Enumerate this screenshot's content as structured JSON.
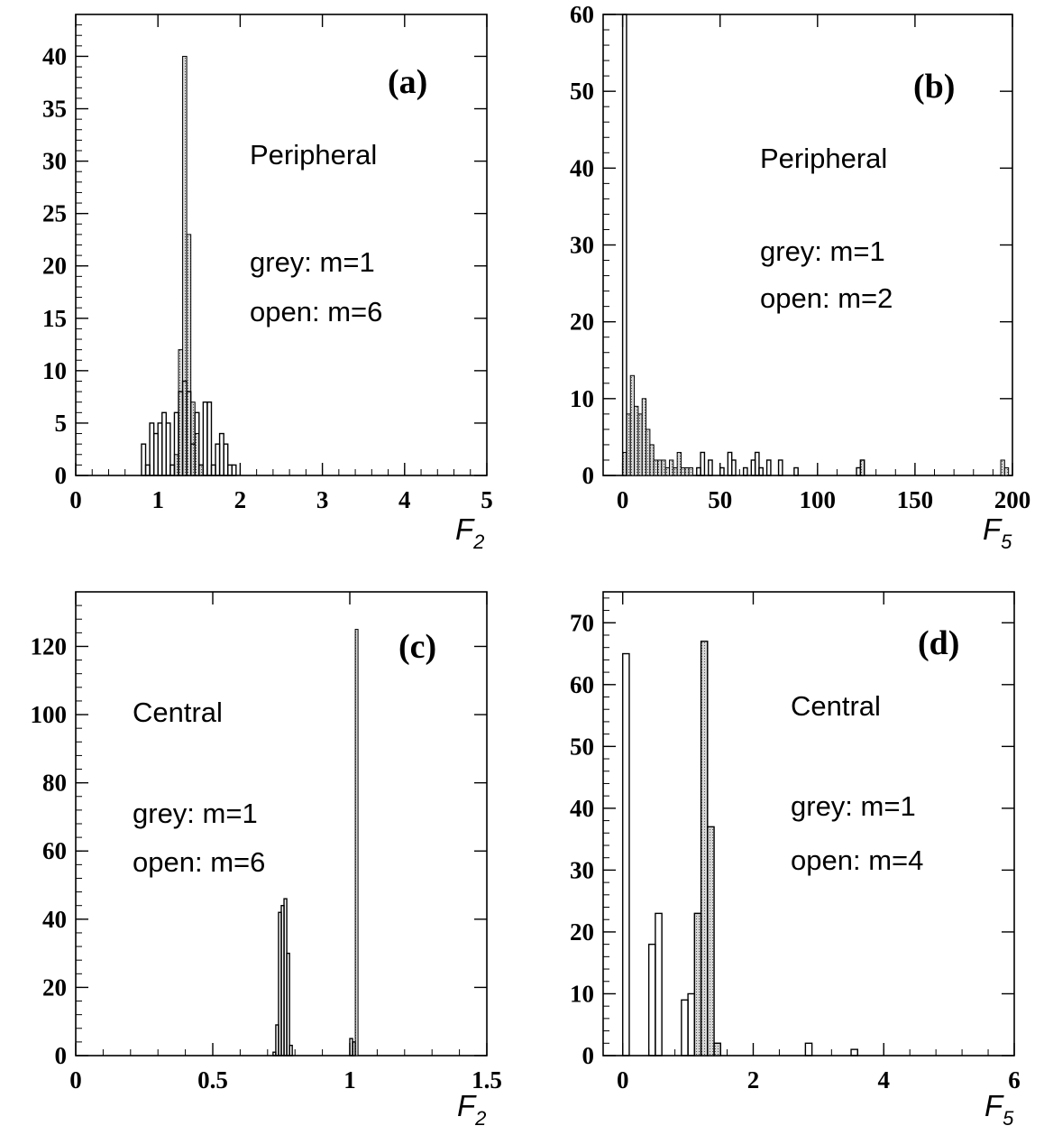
{
  "chart_data": [
    {
      "panel": "(a)",
      "type": "bar",
      "annotations": [
        "Peripheral",
        "grey: m=1",
        "open: m=6"
      ],
      "xlabel": "F",
      "xlabel_sub": "2",
      "xlim": [
        0,
        5
      ],
      "ylim": [
        0,
        44
      ],
      "xticks": [
        0,
        1,
        2,
        3,
        4,
        5
      ],
      "yticks": [
        0,
        5,
        10,
        15,
        20,
        25,
        30,
        35,
        40
      ],
      "bin_width": 0.05,
      "series": [
        {
          "name": "grey: m=1",
          "style": "filled",
          "x": [
            1.2,
            1.25,
            1.3,
            1.35,
            1.4,
            1.45,
            1.5
          ],
          "values": [
            2,
            12,
            40,
            23,
            7,
            4,
            1
          ]
        },
        {
          "name": "open: m=6",
          "style": "open",
          "x": [
            0.8,
            0.85,
            0.9,
            0.95,
            1.0,
            1.05,
            1.1,
            1.15,
            1.2,
            1.25,
            1.3,
            1.35,
            1.4,
            1.45,
            1.5,
            1.55,
            1.6,
            1.65,
            1.7,
            1.75,
            1.8,
            1.85,
            1.9
          ],
          "values": [
            3,
            1,
            5,
            4,
            5,
            6,
            5,
            1,
            6,
            8,
            9,
            8,
            3,
            6,
            1,
            7,
            7,
            1,
            3,
            4,
            3,
            1,
            1
          ]
        }
      ]
    },
    {
      "panel": "(b)",
      "type": "bar",
      "annotations": [
        "Peripheral",
        "grey: m=1",
        "open: m=2"
      ],
      "xlabel": "F",
      "xlabel_sub": "5",
      "xlim": [
        -10,
        200
      ],
      "ylim": [
        0,
        60
      ],
      "xticks": [
        0,
        50,
        100,
        150,
        200
      ],
      "yticks": [
        0,
        10,
        20,
        30,
        40,
        50,
        60
      ],
      "bin_width": 2,
      "series": [
        {
          "name": "grey: m=1",
          "style": "filled",
          "x": [
            0,
            2,
            4,
            6,
            8,
            10,
            12,
            14,
            16,
            18,
            20,
            22,
            24,
            26,
            28,
            30,
            32,
            34
          ],
          "values": [
            3,
            8,
            13,
            9,
            8,
            10,
            6,
            4,
            2,
            2,
            2,
            1,
            2,
            1,
            3,
            1,
            1,
            1
          ],
          "labelled": [
            {
              "x": 122,
              "v": 2
            },
            {
              "x": 194,
              "v": 2
            },
            {
              "x": 196,
              "v": 1
            }
          ]
        },
        {
          "name": "open: m=2",
          "style": "open",
          "x": [
            0,
            38,
            40,
            44,
            50,
            54,
            56,
            62,
            66,
            68,
            70,
            74,
            80,
            88,
            120,
            122
          ],
          "values": [
            60,
            1,
            3,
            2,
            1,
            3,
            2,
            1,
            2,
            3,
            1,
            2,
            2,
            1,
            1,
            2
          ]
        }
      ]
    },
    {
      "panel": "(c)",
      "type": "bar",
      "annotations": [
        "Central",
        "grey: m=1",
        "open: m=6"
      ],
      "xlabel": "F",
      "xlabel_sub": "2",
      "xlim": [
        0,
        1.5
      ],
      "ylim": [
        0,
        136
      ],
      "xticks": [
        0,
        0.5,
        1,
        1.5
      ],
      "xtick_labels": [
        "0",
        "0.5",
        "1",
        "1.5"
      ],
      "yticks": [
        0,
        20,
        40,
        60,
        80,
        100,
        120
      ],
      "bin_width": 0.01,
      "series": [
        {
          "name": "grey: m=1",
          "style": "filled",
          "x": [
            1.01,
            1.02
          ],
          "values": [
            4,
            125
          ]
        },
        {
          "name": "open: m=6",
          "style": "open",
          "x": [
            0.72,
            0.73,
            0.74,
            0.75,
            0.76,
            0.77,
            0.78,
            1.0,
            1.01
          ],
          "values": [
            1,
            9,
            42,
            44,
            46,
            30,
            3,
            5,
            4
          ]
        }
      ]
    },
    {
      "panel": "(d)",
      "type": "bar",
      "annotations": [
        "Central",
        "grey: m=1",
        "open: m=4"
      ],
      "xlabel": "F",
      "xlabel_sub": "5",
      "xlim": [
        -0.3,
        6
      ],
      "ylim": [
        0,
        75
      ],
      "xticks": [
        0,
        2,
        4,
        6
      ],
      "yticks": [
        0,
        10,
        20,
        30,
        40,
        50,
        60,
        70
      ],
      "bin_width": 0.1,
      "series": [
        {
          "name": "grey: m=1",
          "style": "filled",
          "x": [
            1.1,
            1.2,
            1.3,
            1.4
          ],
          "values": [
            23,
            67,
            37,
            2
          ]
        },
        {
          "name": "open: m=4",
          "style": "open",
          "x": [
            0.0,
            0.4,
            0.5,
            0.6,
            0.9,
            1.0,
            1.1,
            1.2,
            1.3,
            1.4,
            2.8,
            3.5
          ],
          "values": [
            65,
            18,
            23,
            0,
            9,
            10,
            23,
            67,
            37,
            2,
            2,
            1
          ]
        }
      ]
    }
  ]
}
